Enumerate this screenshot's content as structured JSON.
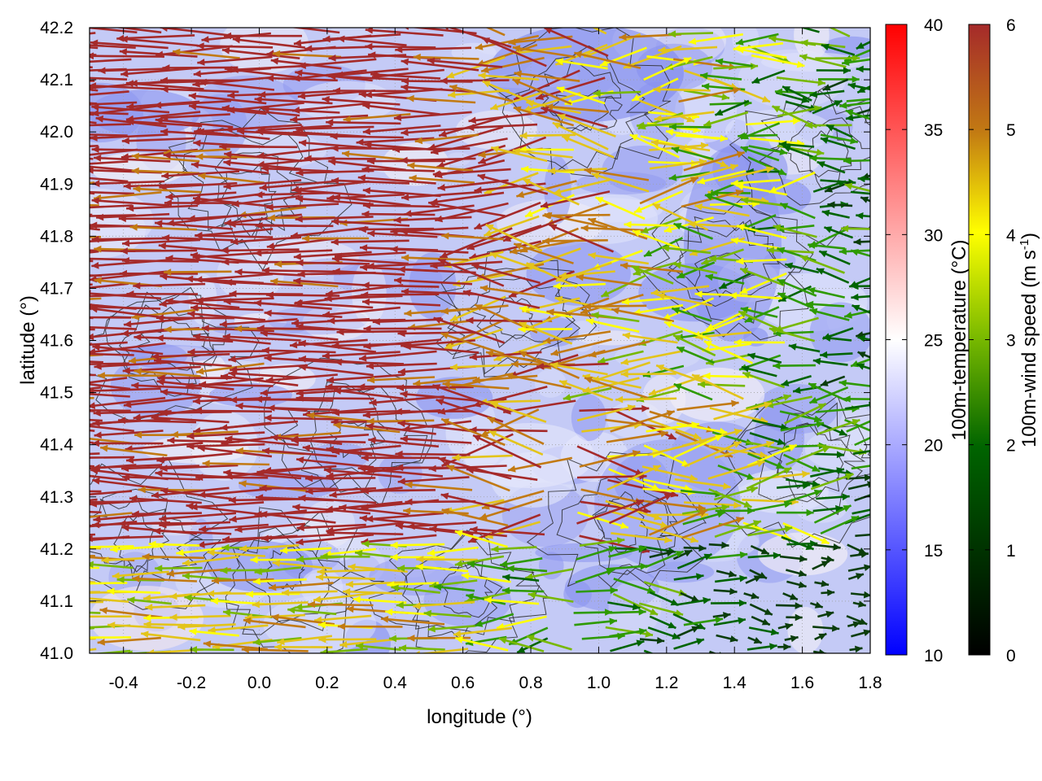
{
  "chart_data": {
    "type": "heatmap",
    "title": "",
    "xlabel": "longitude (°)",
    "ylabel": "latitude (°)",
    "xlim": [
      -0.5,
      1.8
    ],
    "ylim": [
      41.0,
      42.2
    ],
    "x_ticks": [
      "-0.4",
      "-0.2",
      "0.0",
      "0.2",
      "0.4",
      "0.6",
      "0.8",
      "1.0",
      "1.2",
      "1.4",
      "1.6",
      "1.8"
    ],
    "y_ticks": [
      "41.0",
      "41.1",
      "41.2",
      "41.3",
      "41.4",
      "41.5",
      "41.6",
      "41.7",
      "41.8",
      "41.9",
      "42.0",
      "42.1",
      "42.2"
    ],
    "grid": true,
    "temperature_colorbar": {
      "label": "100m-temperature (°C)",
      "range": [
        10,
        40
      ],
      "ticks": [
        "10",
        "15",
        "20",
        "25",
        "30",
        "35",
        "40"
      ],
      "colors": [
        "#0000ff",
        "#ffffff",
        "#ff0000"
      ]
    },
    "wind_colorbar": {
      "label_main": "100m-wind speed (m s",
      "label_sup": "-1",
      "label_end": ")",
      "range": [
        0,
        6
      ],
      "ticks": [
        "0",
        "1",
        "2",
        "3",
        "4",
        "5",
        "6"
      ],
      "colors": [
        "#000000",
        "#006400",
        "#77b800",
        "#ffff00",
        "#c27a13",
        "#a52a2a"
      ]
    },
    "layers": [
      "temperature field",
      "topography contours",
      "wind vectors"
    ]
  }
}
